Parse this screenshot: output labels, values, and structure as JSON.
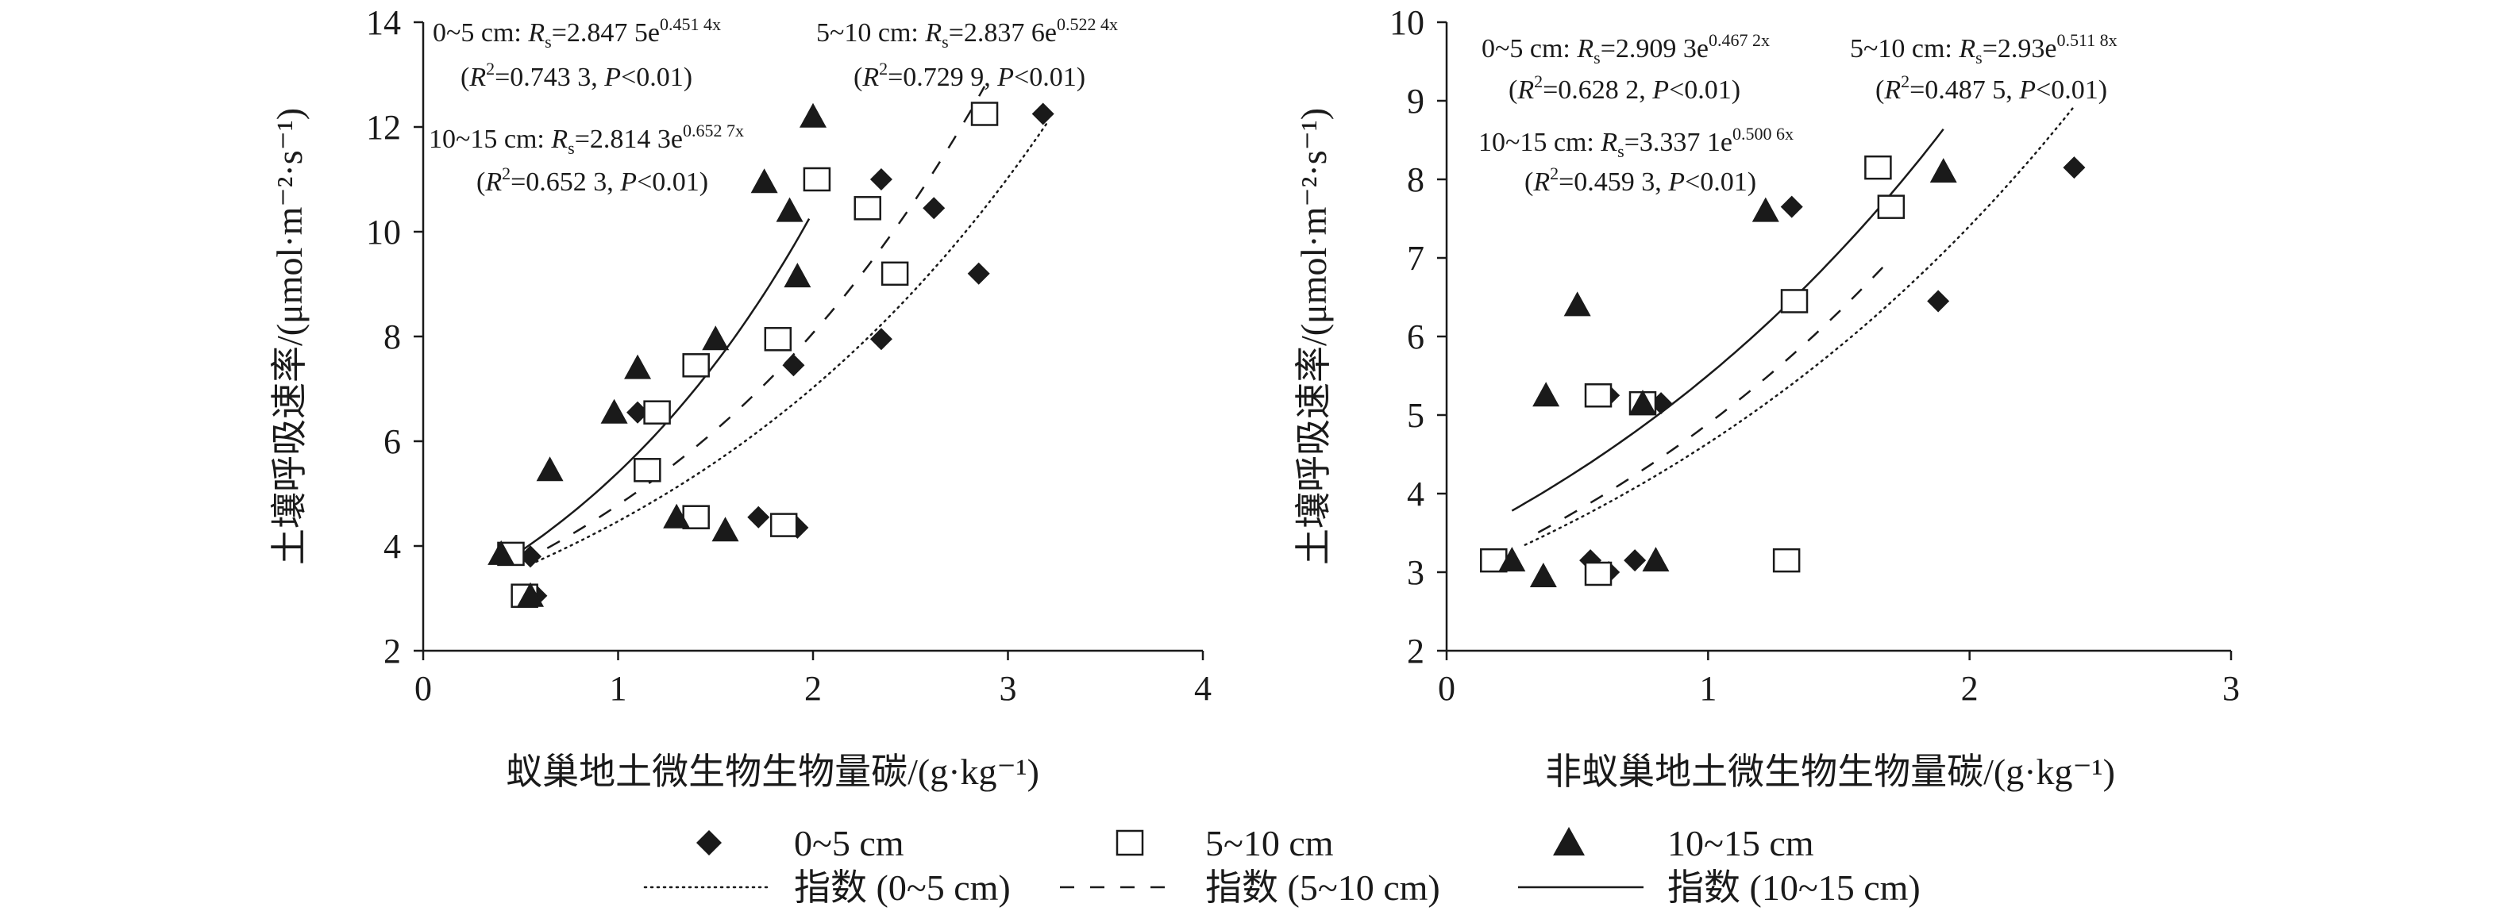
{
  "chart_data": [
    {
      "type": "scatter",
      "xlabel": "蚁巢地土微生物生物量碳/(g·kg⁻¹)",
      "ylabel": "土壤呼吸速率/(μmol·m⁻²·s⁻¹)",
      "xlim": [
        0,
        4
      ],
      "ylim": [
        2,
        14
      ],
      "xticks": [
        "0",
        "1",
        "2",
        "3",
        "4"
      ],
      "yticks": [
        "2",
        "4",
        "6",
        "8",
        "10",
        "12",
        "14"
      ],
      "series": [
        {
          "name": "0~5 cm",
          "marker": "diamond",
          "points": [
            [
              0.55,
              3.8
            ],
            [
              0.58,
              3.05
            ],
            [
              1.1,
              6.55
            ],
            [
              1.15,
              5.45
            ],
            [
              1.72,
              4.55
            ],
            [
              1.92,
              4.35
            ],
            [
              1.9,
              7.45
            ],
            [
              2.35,
              7.95
            ],
            [
              2.35,
              11.0
            ],
            [
              2.62,
              10.45
            ],
            [
              2.85,
              9.2
            ],
            [
              3.18,
              12.25
            ]
          ],
          "fit": {
            "a": 2.8475,
            "b": 0.4514,
            "x_range": [
              0.55,
              3.2
            ]
          }
        },
        {
          "name": "5~10 cm",
          "marker": "square",
          "points": [
            [
              0.45,
              3.85
            ],
            [
              0.52,
              3.05
            ],
            [
              1.15,
              5.45
            ],
            [
              1.2,
              6.55
            ],
            [
              1.4,
              4.55
            ],
            [
              1.4,
              7.45
            ],
            [
              1.82,
              7.95
            ],
            [
              1.85,
              4.4
            ],
            [
              2.02,
              11.0
            ],
            [
              2.28,
              10.45
            ],
            [
              2.42,
              9.2
            ],
            [
              2.88,
              12.25
            ]
          ],
          "fit": {
            "a": 2.8376,
            "b": 0.5224,
            "x_range": [
              0.5,
              2.88
            ]
          }
        },
        {
          "name": "10~15 cm",
          "marker": "triangle",
          "points": [
            [
              0.4,
              3.85
            ],
            [
              0.55,
              3.05
            ],
            [
              0.65,
              5.45
            ],
            [
              0.98,
              6.55
            ],
            [
              1.1,
              7.4
            ],
            [
              1.3,
              4.55
            ],
            [
              1.5,
              7.95
            ],
            [
              1.55,
              4.3
            ],
            [
              1.75,
              10.95
            ],
            [
              1.88,
              10.4
            ],
            [
              1.92,
              9.15
            ],
            [
              2.0,
              12.2
            ]
          ],
          "fit": {
            "a": 2.8143,
            "b": 0.6527,
            "x_range": [
              0.43,
              1.98
            ]
          }
        }
      ],
      "annotations": {
        "a1_prefix": "0~5 cm: ",
        "a1_eq": "=2.847 5e",
        "a1_exp": "0.451 4x",
        "a1_stat": "=0.743 3, ",
        "a1_p": "<0.01)",
        "a2_prefix": "5~10 cm: ",
        "a2_eq": "=2.837 6e",
        "a2_exp": "0.522 4x",
        "a2_stat": "=0.729 9, ",
        "a2_p": "<0.01)",
        "a3_prefix": "10~15 cm: ",
        "a3_eq": "=2.814 3e",
        "a3_exp": "0.652 7x",
        "a3_stat": "=0.652 3, ",
        "a3_p": "<0.01)"
      }
    },
    {
      "type": "scatter",
      "xlabel": "非蚁巢地土微生物生物量碳/(g·kg⁻¹)",
      "ylabel": "土壤呼吸速率/(μmol·m⁻²·s⁻¹)",
      "xlim": [
        0,
        3
      ],
      "ylim": [
        2,
        10
      ],
      "xticks": [
        "0",
        "1",
        "2",
        "3"
      ],
      "yticks": [
        "2",
        "3",
        "4",
        "5",
        "6",
        "7",
        "8",
        "9",
        "10"
      ],
      "series": [
        {
          "name": "0~5 cm",
          "marker": "diamond",
          "points": [
            [
              0.55,
              3.15
            ],
            [
              0.62,
              3.0
            ],
            [
              0.72,
              3.15
            ],
            [
              0.62,
              5.25
            ],
            [
              0.82,
              5.15
            ],
            [
              1.32,
              7.65
            ],
            [
              1.88,
              6.45
            ],
            [
              2.4,
              8.15
            ]
          ],
          "fit": {
            "a": 2.9093,
            "b": 0.4672,
            "x_range": [
              0.3,
              2.4
            ]
          }
        },
        {
          "name": "5~10 cm",
          "marker": "square",
          "points": [
            [
              0.18,
              3.15
            ],
            [
              0.58,
              2.98
            ],
            [
              0.58,
              5.25
            ],
            [
              0.75,
              5.15
            ],
            [
              1.3,
              3.15
            ],
            [
              1.33,
              6.45
            ],
            [
              1.65,
              8.15
            ],
            [
              1.7,
              7.65
            ]
          ],
          "fit": {
            "a": 2.93,
            "b": 0.5118,
            "x_range": [
              0.35,
              1.7
            ]
          }
        },
        {
          "name": "10~15 cm",
          "marker": "triangle",
          "points": [
            [
              0.25,
              3.15
            ],
            [
              0.37,
              2.95
            ],
            [
              0.38,
              5.25
            ],
            [
              0.5,
              6.4
            ],
            [
              0.75,
              5.15
            ],
            [
              0.8,
              3.15
            ],
            [
              1.22,
              7.6
            ],
            [
              1.9,
              8.1
            ]
          ],
          "fit": {
            "a": 3.3371,
            "b": 0.5006,
            "x_range": [
              0.25,
              1.9
            ]
          }
        }
      ],
      "annotations": {
        "a1_prefix": "0~5 cm: ",
        "a1_eq": "=2.909 3e",
        "a1_exp": "0.467 2x",
        "a1_stat": "=0.628 2, ",
        "a1_p": "<0.01)",
        "a2_prefix": "5~10 cm: ",
        "a2_eq": "=2.93e",
        "a2_exp": "0.511 8x",
        "a2_stat": "=0.487 5, ",
        "a2_p": "<0.01)",
        "a3_prefix": "10~15 cm: ",
        "a3_eq": "=3.337 1e",
        "a3_exp": "0.500 6x",
        "a3_stat": "=0.459 3, ",
        "a3_p": "<0.01)"
      }
    }
  ],
  "legend": {
    "items": [
      {
        "label": "0~5 cm",
        "kind": "diamond"
      },
      {
        "label": "5~10 cm",
        "kind": "square"
      },
      {
        "label": "10~15 cm",
        "kind": "triangle"
      },
      {
        "label": "指数 (0~5 cm)",
        "kind": "dotted"
      },
      {
        "label": "指数 (5~10 cm)",
        "kind": "dashed"
      },
      {
        "label": "指数 (10~15 cm)",
        "kind": "solid"
      }
    ]
  },
  "colors": {
    "ink": "#1a1a1a",
    "background": "#ffffff"
  }
}
